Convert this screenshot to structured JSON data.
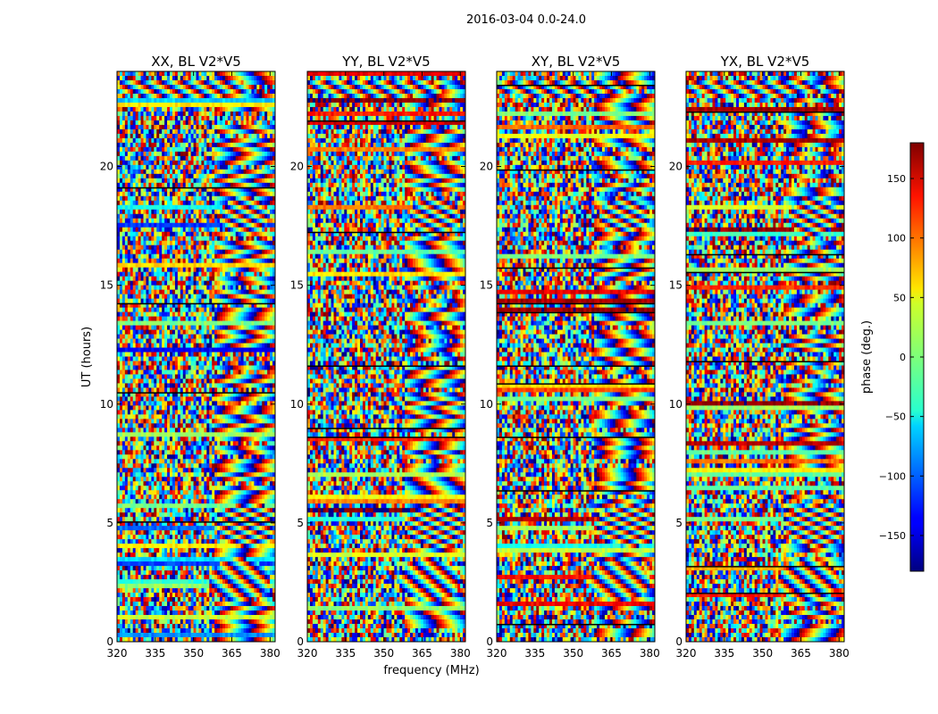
{
  "chart_data": {
    "type": "heatmap",
    "suptitle": "2016-03-04 0.0-24.0",
    "xlabel": "frequency (MHz)",
    "ylabel": "UT (hours)",
    "xlim": [
      320,
      382
    ],
    "ylim": [
      0,
      24
    ],
    "xticks": [
      320,
      335,
      350,
      365,
      380
    ],
    "yticks": [
      0,
      5,
      10,
      15,
      20
    ],
    "panels": [
      {
        "title": "XX, BL V2*V5",
        "pol": "XX"
      },
      {
        "title": "YY, BL V2*V5",
        "pol": "YY"
      },
      {
        "title": "XY, BL V2*V5",
        "pol": "XY"
      },
      {
        "title": "YX, BL V2*V5",
        "pol": "YX"
      }
    ],
    "colorbar": {
      "label": "phase (deg.)",
      "colormap": "jet",
      "vmin": -180,
      "vmax": 180,
      "ticks": [
        -150,
        -100,
        -50,
        0,
        50,
        100,
        150
      ],
      "tick_labels": [
        "−150",
        "−100",
        "−50",
        "0",
        "50",
        "100",
        "150"
      ]
    }
  }
}
